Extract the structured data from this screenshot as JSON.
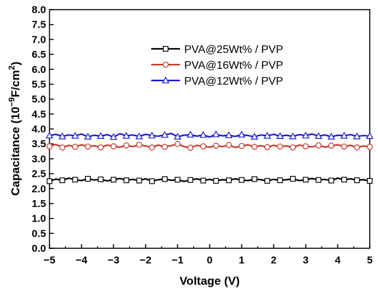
{
  "chart_data": {
    "type": "line",
    "xlabel": "Voltage (V)",
    "ylabel": {
      "prefix": "Capacitance (10",
      "exponent": "−9",
      "middle": "F/cm",
      "exponent2": "2",
      "suffix": ")"
    },
    "xlim": [
      -5,
      5
    ],
    "ylim": [
      0.0,
      8.0
    ],
    "x_ticks": [
      "−5",
      "−4",
      "−3",
      "−2",
      "−1",
      "0",
      "1",
      "2",
      "3",
      "4",
      "5"
    ],
    "x_tick_values": [
      -5,
      -4,
      -3,
      -2,
      -1,
      0,
      1,
      2,
      3,
      4,
      5
    ],
    "y_ticks": [
      "0.0",
      "0.5",
      "1.0",
      "1.5",
      "2.0",
      "2.5",
      "3.0",
      "3.5",
      "4.0",
      "4.5",
      "5.0",
      "5.5",
      "6.0",
      "6.5",
      "7.0",
      "7.5",
      "8.0"
    ],
    "y_tick_values": [
      0.0,
      0.5,
      1.0,
      1.5,
      2.0,
      2.5,
      3.0,
      3.5,
      4.0,
      4.5,
      5.0,
      5.5,
      6.0,
      6.5,
      7.0,
      7.5,
      8.0
    ],
    "grid": false,
    "legend_position": "top-right",
    "x": [
      -5.0,
      -4.8,
      -4.6,
      -4.4,
      -4.2,
      -4.0,
      -3.8,
      -3.6,
      -3.4,
      -3.2,
      -3.0,
      -2.8,
      -2.6,
      -2.4,
      -2.2,
      -2.0,
      -1.8,
      -1.6,
      -1.4,
      -1.2,
      -1.0,
      -0.8,
      -0.6,
      -0.4,
      -0.2,
      0.0,
      0.2,
      0.4,
      0.6,
      0.8,
      1.0,
      1.2,
      1.4,
      1.6,
      1.8,
      2.0,
      2.2,
      2.4,
      2.6,
      2.8,
      3.0,
      3.2,
      3.4,
      3.6,
      3.8,
      4.0,
      4.2,
      4.4,
      4.6,
      4.8,
      5.0
    ],
    "series": [
      {
        "name": "PVA@25Wt% / PVP",
        "color": "#000000",
        "marker": "square",
        "values": [
          2.25,
          2.32,
          2.28,
          2.35,
          2.3,
          2.27,
          2.33,
          2.29,
          2.31,
          2.26,
          2.3,
          2.34,
          2.28,
          2.31,
          2.27,
          2.33,
          2.25,
          2.3,
          2.32,
          2.28,
          2.3,
          2.24,
          2.29,
          2.33,
          2.27,
          2.31,
          2.26,
          2.3,
          2.28,
          2.33,
          2.29,
          2.27,
          2.32,
          2.3,
          2.26,
          2.31,
          2.28,
          2.3,
          2.33,
          2.27,
          2.3,
          2.34,
          2.29,
          2.31,
          2.27,
          2.35,
          2.3,
          2.33,
          2.28,
          2.3,
          2.26
        ]
      },
      {
        "name": "PVA@16Wt% / PVP",
        "color": "#c0392b",
        "marker": "circle",
        "values": [
          3.42,
          3.48,
          3.38,
          3.45,
          3.4,
          3.47,
          3.41,
          3.44,
          3.38,
          3.46,
          3.42,
          3.39,
          3.45,
          3.41,
          3.47,
          3.43,
          3.38,
          3.46,
          3.4,
          3.44,
          3.5,
          3.41,
          3.37,
          3.45,
          3.42,
          3.39,
          3.44,
          3.41,
          3.46,
          3.38,
          3.43,
          3.47,
          3.4,
          3.44,
          3.39,
          3.45,
          3.41,
          3.43,
          3.38,
          3.46,
          3.42,
          3.4,
          3.45,
          3.39,
          3.44,
          3.47,
          3.41,
          3.45,
          3.38,
          3.43,
          3.4
        ]
      },
      {
        "name": "PVA@12Wt% / PVP",
        "color": "#1a1ad1",
        "marker": "triangle",
        "values": [
          3.78,
          3.82,
          3.75,
          3.8,
          3.77,
          3.83,
          3.74,
          3.79,
          3.76,
          3.81,
          3.73,
          3.84,
          3.77,
          3.8,
          3.75,
          3.82,
          3.78,
          3.76,
          3.8,
          3.85,
          3.74,
          3.79,
          3.81,
          3.76,
          3.8,
          3.73,
          3.82,
          3.77,
          3.79,
          3.75,
          3.81,
          3.78,
          3.74,
          3.8,
          3.77,
          3.82,
          3.76,
          3.79,
          3.75,
          3.81,
          3.78,
          3.83,
          3.76,
          3.8,
          3.74,
          3.79,
          3.77,
          3.81,
          3.75,
          3.78,
          3.76
        ]
      }
    ]
  }
}
